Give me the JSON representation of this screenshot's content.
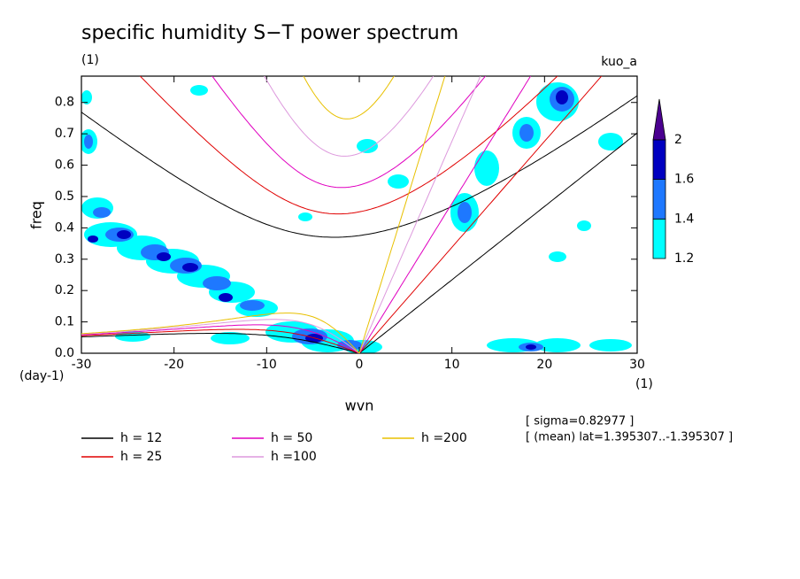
{
  "chart_data": {
    "type": "spectrum",
    "title": "specific humidity S−T power spectrum",
    "subtitle": "(1)",
    "top_right_label": "kuo_a",
    "xlabel": "wvn",
    "ylabel": "freq",
    "x_unit": "(1)",
    "y_unit": "(day-1)",
    "annotations": [
      "[ sigma=0.82977 ]",
      "[ (mean) lat=1.395307..-1.395307 ]"
    ],
    "xlim": [
      -30,
      30
    ],
    "ylim": [
      0,
      0.884
    ],
    "xticks": [
      -30,
      -20,
      -10,
      0,
      10,
      20,
      30
    ],
    "yticks": [
      {
        "value": 0,
        "label": "0.0"
      },
      0.1,
      0.2,
      0.3,
      0.4,
      0.5,
      0.6,
      0.7,
      0.8
    ],
    "series": [
      {
        "name": "h = 12",
        "h": 12,
        "color": "#000000"
      },
      {
        "name": "h = 25",
        "h": 25,
        "color": "#e00000"
      },
      {
        "name": "h = 50",
        "h": 50,
        "color": "#e000c0"
      },
      {
        "name": "h =100",
        "h": 100,
        "color": "#dd99dd"
      },
      {
        "name": "h =200",
        "h": 200,
        "color": "#e8c000"
      }
    ],
    "colorbar": {
      "levels": [
        1.2,
        1.4,
        1.6,
        2
      ],
      "colors": [
        "#00ffff",
        "#1e78ff",
        "#0000c0",
        "#4b0090"
      ]
    }
  }
}
